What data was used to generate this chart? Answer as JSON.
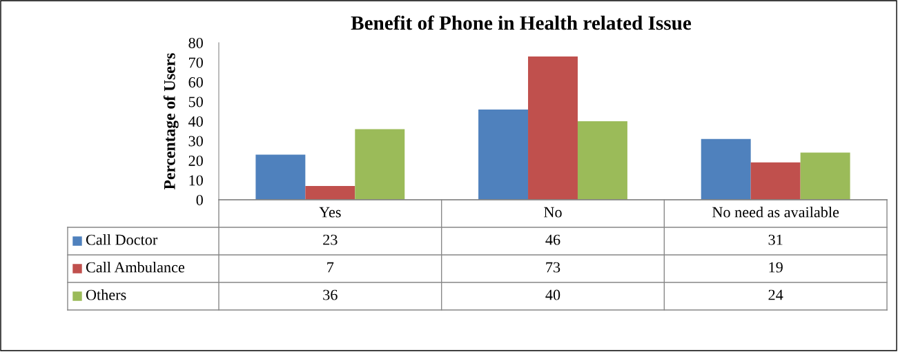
{
  "chart_data": {
    "type": "bar",
    "title": "Benefit of Phone in Health related Issue",
    "ylabel": "Percentage of Users",
    "categories": [
      "Yes",
      "No",
      "No need as available"
    ],
    "series": [
      {
        "name": "Call Doctor",
        "color": "#4f81bd",
        "values": [
          23,
          46,
          31
        ]
      },
      {
        "name": "Call Ambulance",
        "color": "#c0504d",
        "values": [
          7,
          73,
          19
        ]
      },
      {
        "name": "Others",
        "color": "#9bbb59",
        "values": [
          36,
          40,
          24
        ]
      }
    ],
    "ylim": [
      0,
      80
    ],
    "yticks": [
      0,
      10,
      20,
      30,
      40,
      50,
      60,
      70,
      80
    ],
    "grid": false,
    "legend": "bottom",
    "data_labels": true
  }
}
